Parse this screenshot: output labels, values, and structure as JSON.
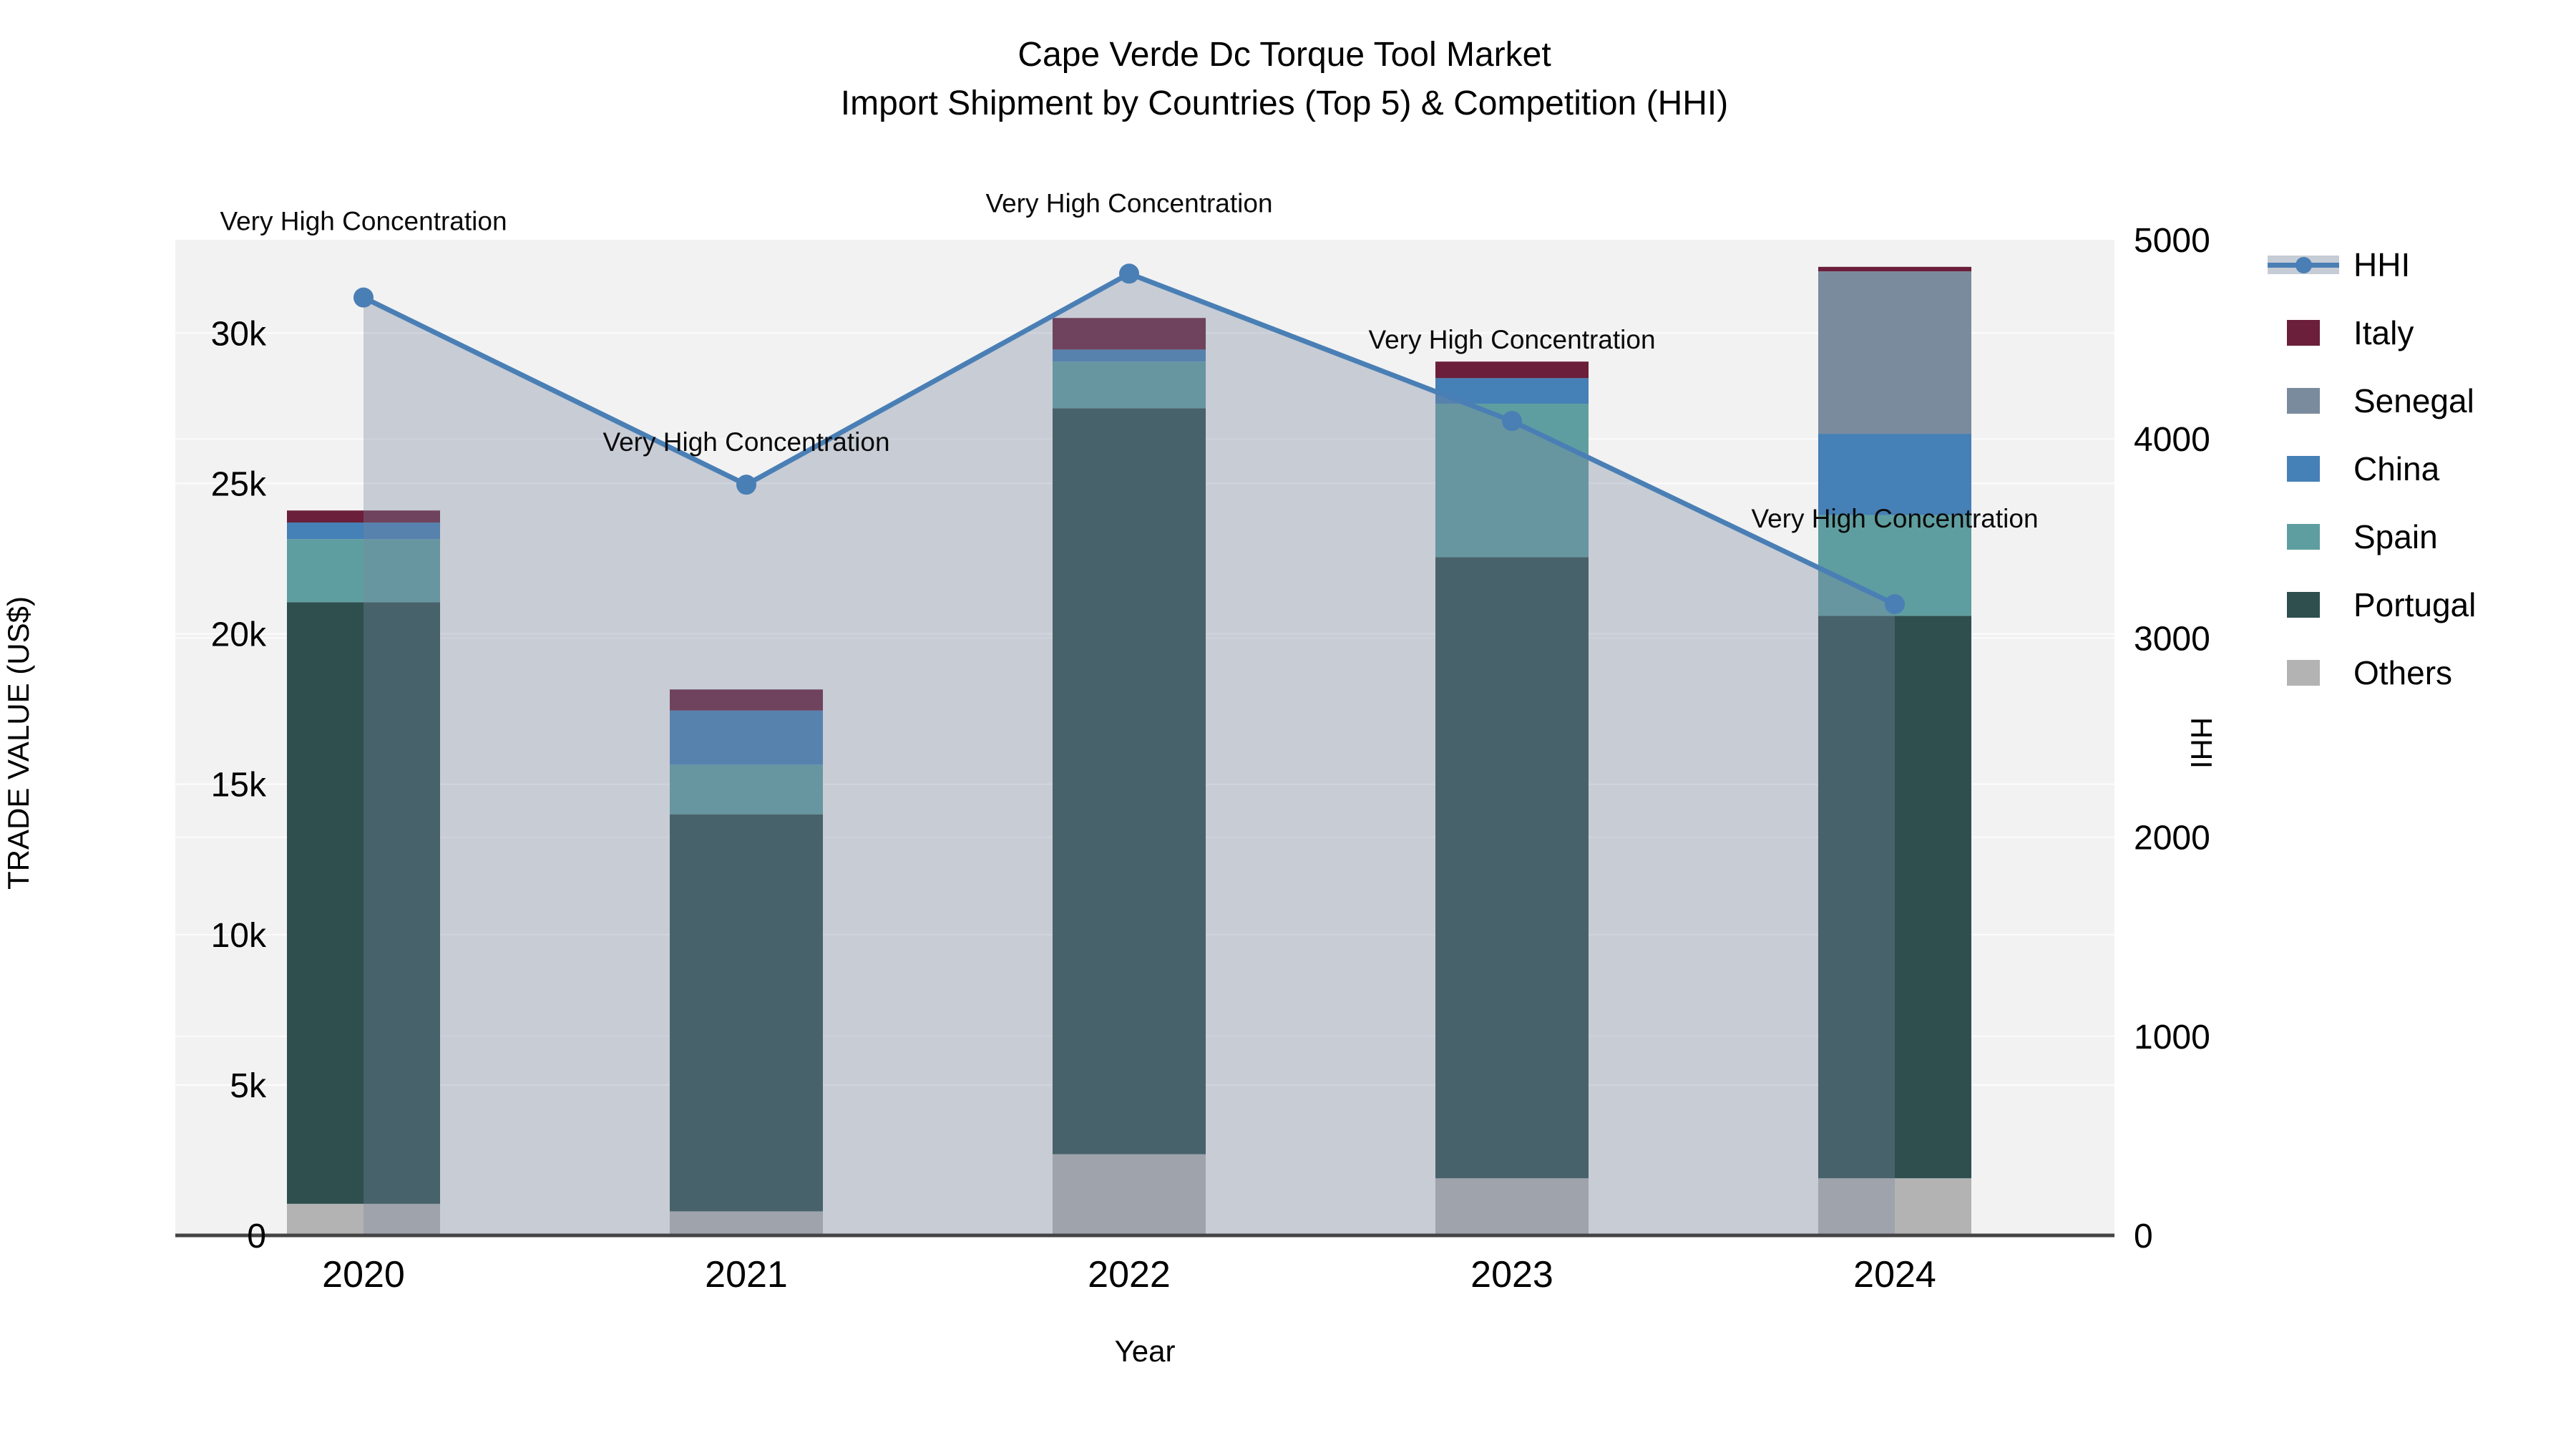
{
  "title": {
    "line1": "Cape Verde Dc Torque Tool Market",
    "line2": "Import Shipment by Countries (Top 5) & Competition (HHI)"
  },
  "colors": {
    "plot_bg": "#F2F2F2",
    "page_bg": "#FFFFFF",
    "axis_line": "#444444",
    "gridline": "#FFFFFF",
    "hhi_line": "#4A7FB5",
    "hhi_area": "rgba(120,135,160,0.35)",
    "italy": "#6B1F3A",
    "senegal": "#7B8B9E",
    "china": "#4580B6",
    "spain": "#5F9EA0",
    "portugal": "#2F4F4F",
    "others": "#B3B3B3"
  },
  "legend": [
    {
      "label": "HHI",
      "type": "line",
      "color": "#4A7FB5"
    },
    {
      "label": "Italy",
      "type": "box",
      "color": "#6B1F3A"
    },
    {
      "label": "Senegal",
      "type": "box",
      "color": "#7B8B9E"
    },
    {
      "label": "China",
      "type": "box",
      "color": "#4580B6"
    },
    {
      "label": "Spain",
      "type": "box",
      "color": "#5F9EA0"
    },
    {
      "label": "Portugal",
      "type": "box",
      "color": "#2F4F4F"
    },
    {
      "label": "Others",
      "type": "box",
      "color": "#B3B3B3"
    }
  ],
  "chart_data": {
    "type": "bar",
    "subtype": "stacked-bar-with-line",
    "title": "Cape Verde Dc Torque Tool Market — Import Shipment by Countries (Top 5) & Competition (HHI)",
    "xlabel": "Year",
    "ylabel_left": "TRADE VALUE (US$)",
    "ylabel_right": "HHI",
    "categories": [
      "2020",
      "2021",
      "2022",
      "2023",
      "2024"
    ],
    "series": [
      {
        "name": "Others",
        "color": "#B3B3B3",
        "values": [
          1050,
          800,
          2700,
          1900,
          1900
        ]
      },
      {
        "name": "Portugal",
        "color": "#2F4F4F",
        "values": [
          20000,
          13200,
          24800,
          20650,
          18700
        ]
      },
      {
        "name": "Spain",
        "color": "#5F9EA0",
        "values": [
          2100,
          1650,
          1550,
          5100,
          3350
        ]
      },
      {
        "name": "China",
        "color": "#4580B6",
        "values": [
          550,
          1800,
          400,
          850,
          2700
        ]
      },
      {
        "name": "Senegal",
        "color": "#7B8B9E",
        "values": [
          0,
          0,
          0,
          0,
          5400
        ]
      },
      {
        "name": "Italy",
        "color": "#6B1F3A",
        "values": [
          400,
          700,
          1050,
          550,
          150
        ]
      }
    ],
    "line_series": {
      "name": "HHI",
      "axis": "right",
      "color": "#4A7FB5",
      "fill": "rgba(120,135,160,0.35)",
      "values": [
        4710,
        3770,
        4830,
        4090,
        3170
      ]
    },
    "annotations": [
      {
        "x": "2020",
        "text": "Very High Concentration"
      },
      {
        "x": "2021",
        "text": "Very High Concentration"
      },
      {
        "x": "2022",
        "text": "Very High Concentration"
      },
      {
        "x": "2023",
        "text": "Very High Concentration"
      },
      {
        "x": "2024",
        "text": "Very High Concentration"
      }
    ],
    "y_left_ticks": [
      {
        "label": "0",
        "value": 0
      },
      {
        "label": "5k",
        "value": 5000
      },
      {
        "label": "10k",
        "value": 10000
      },
      {
        "label": "15k",
        "value": 15000
      },
      {
        "label": "20k",
        "value": 20000
      },
      {
        "label": "25k",
        "value": 25000
      },
      {
        "label": "30k",
        "value": 30000
      }
    ],
    "y_right_ticks": [
      {
        "label": "0",
        "value": 0
      },
      {
        "label": "1000",
        "value": 1000
      },
      {
        "label": "2000",
        "value": 2000
      },
      {
        "label": "3000",
        "value": 3000
      },
      {
        "label": "4000",
        "value": 4000
      },
      {
        "label": "5000",
        "value": 5000
      }
    ],
    "ylim_left": [
      0,
      33100
    ],
    "ylim_right": [
      0,
      5000
    ],
    "grid": true,
    "legend_position": "right"
  }
}
